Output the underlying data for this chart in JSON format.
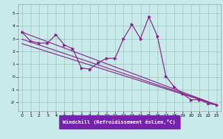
{
  "xlabel": "Windchill (Refroidissement éolien,°C)",
  "xlim": [
    -0.5,
    23.5
  ],
  "ylim": [
    -2.7,
    5.7
  ],
  "yticks": [
    -2,
    -1,
    0,
    1,
    2,
    3,
    4,
    5
  ],
  "xticks": [
    0,
    1,
    2,
    3,
    4,
    5,
    6,
    7,
    8,
    9,
    10,
    11,
    12,
    13,
    14,
    15,
    16,
    17,
    18,
    19,
    20,
    21,
    22,
    23
  ],
  "bg_color": "#c8eaea",
  "plot_bg": "#c8eaea",
  "line_color": "#882288",
  "grid_color": "#a0c8bc",
  "xlabel_bg": "#7722aa",
  "xlabel_fg": "#ffffff",
  "curve1_x": [
    0,
    1,
    2,
    3,
    4,
    5,
    6,
    7,
    8,
    9,
    10,
    11,
    12,
    13,
    14,
    15,
    16,
    17,
    18,
    19,
    20,
    21,
    22,
    23
  ],
  "curve1_y": [
    3.5,
    2.8,
    2.65,
    2.65,
    3.3,
    2.5,
    2.2,
    0.7,
    0.6,
    1.1,
    1.45,
    1.45,
    3.0,
    4.1,
    3.0,
    4.7,
    3.2,
    0.05,
    -0.8,
    -1.35,
    -1.8,
    -1.8,
    -2.1,
    -2.2
  ],
  "trend1": {
    "x": [
      0,
      23
    ],
    "y": [
      3.5,
      -2.2
    ]
  },
  "trend2": {
    "x": [
      0,
      23
    ],
    "y": [
      2.95,
      -2.2
    ]
  },
  "trend3": {
    "x": [
      0,
      23
    ],
    "y": [
      2.6,
      -2.2
    ]
  }
}
